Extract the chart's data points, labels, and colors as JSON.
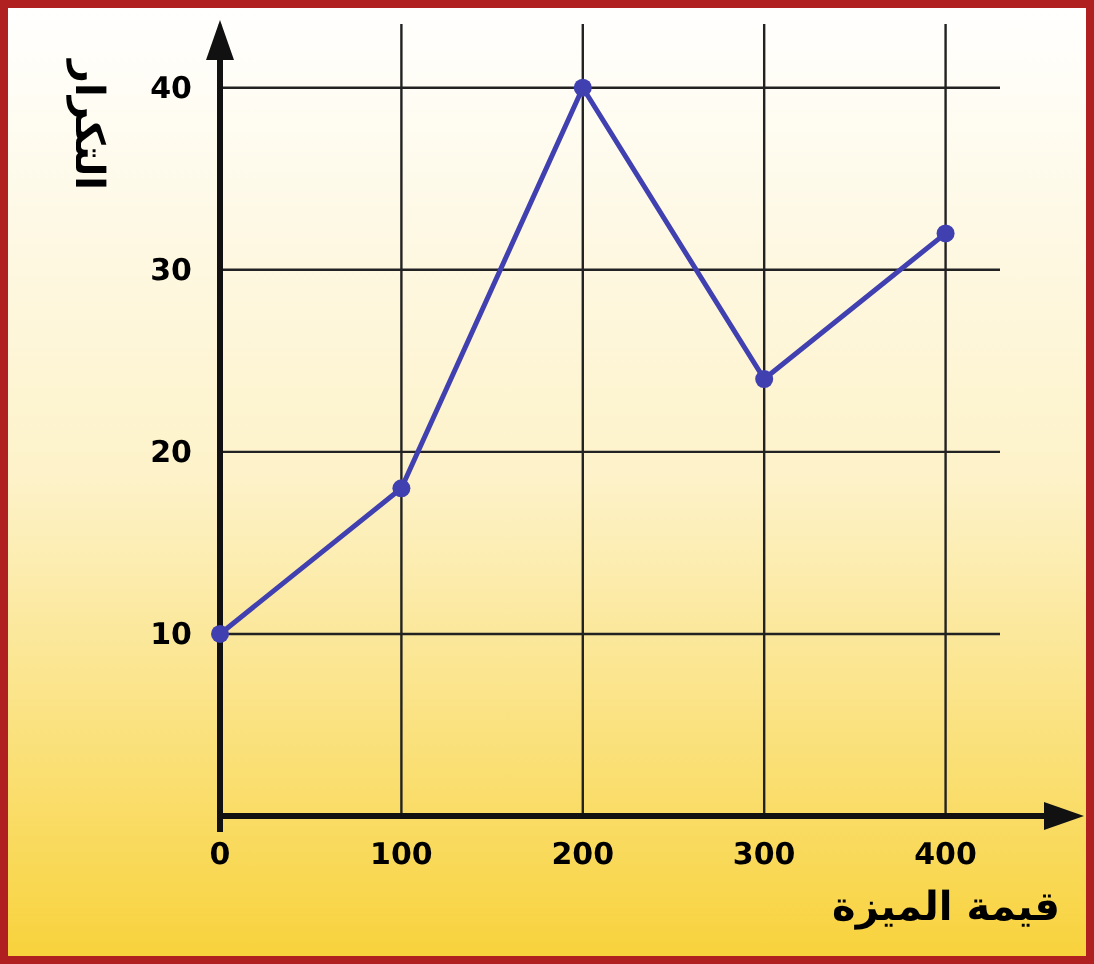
{
  "chart_data": {
    "type": "line",
    "xlabel": "قيمة الميزة",
    "ylabel": "التكرار",
    "x": [
      0,
      100,
      200,
      300,
      400
    ],
    "series": [
      {
        "color": "#4040b0",
        "values": [
          10,
          18,
          40,
          24,
          32
        ]
      }
    ],
    "xlim": [
      0,
      430
    ],
    "ylim": [
      0,
      43.5
    ],
    "xticks": [
      0,
      100,
      200,
      300,
      400
    ],
    "yticks": [
      10,
      20,
      30,
      40
    ],
    "grid": true,
    "marker": "circle",
    "line_style": "solid"
  }
}
